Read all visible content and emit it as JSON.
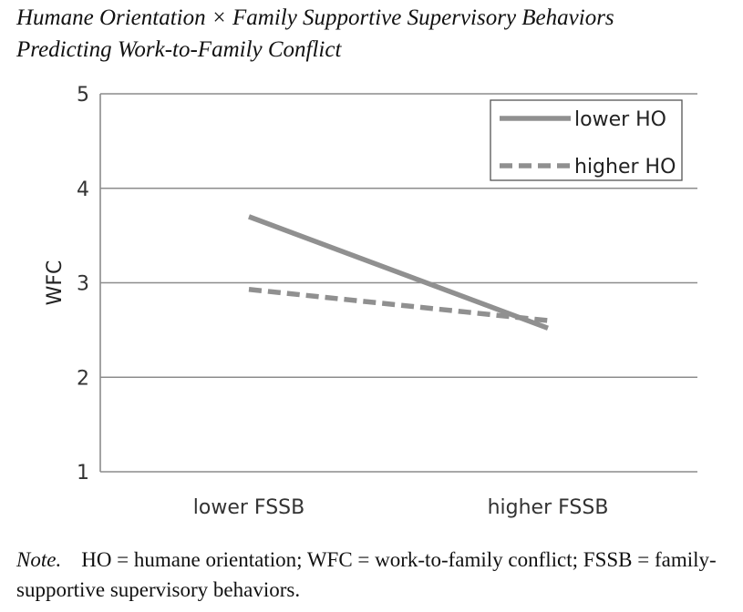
{
  "title": {
    "line1": "Humane Orientation × Family Supportive Supervisory Behaviors",
    "line2": "Predicting Work-to-Family Conflict"
  },
  "note": {
    "label": "Note.",
    "text": "HO = humane orientation; WFC = work-to-family conflict; FSSB = family-supportive supervisory behaviors."
  },
  "chart_data": {
    "type": "line",
    "categories": [
      "lower FSSB",
      "higher FSSB"
    ],
    "series": [
      {
        "name": "lower HO",
        "values": [
          3.7,
          2.52
        ],
        "style": "solid",
        "color": "#909090"
      },
      {
        "name": "higher HO",
        "values": [
          2.93,
          2.6
        ],
        "style": "dashed",
        "color": "#909090"
      }
    ],
    "ylabel": "WFC",
    "xlabel": "",
    "ylim": [
      1,
      5
    ],
    "yticks": [
      1,
      2,
      3,
      4,
      5
    ],
    "grid": true,
    "legend": "top-right"
  }
}
